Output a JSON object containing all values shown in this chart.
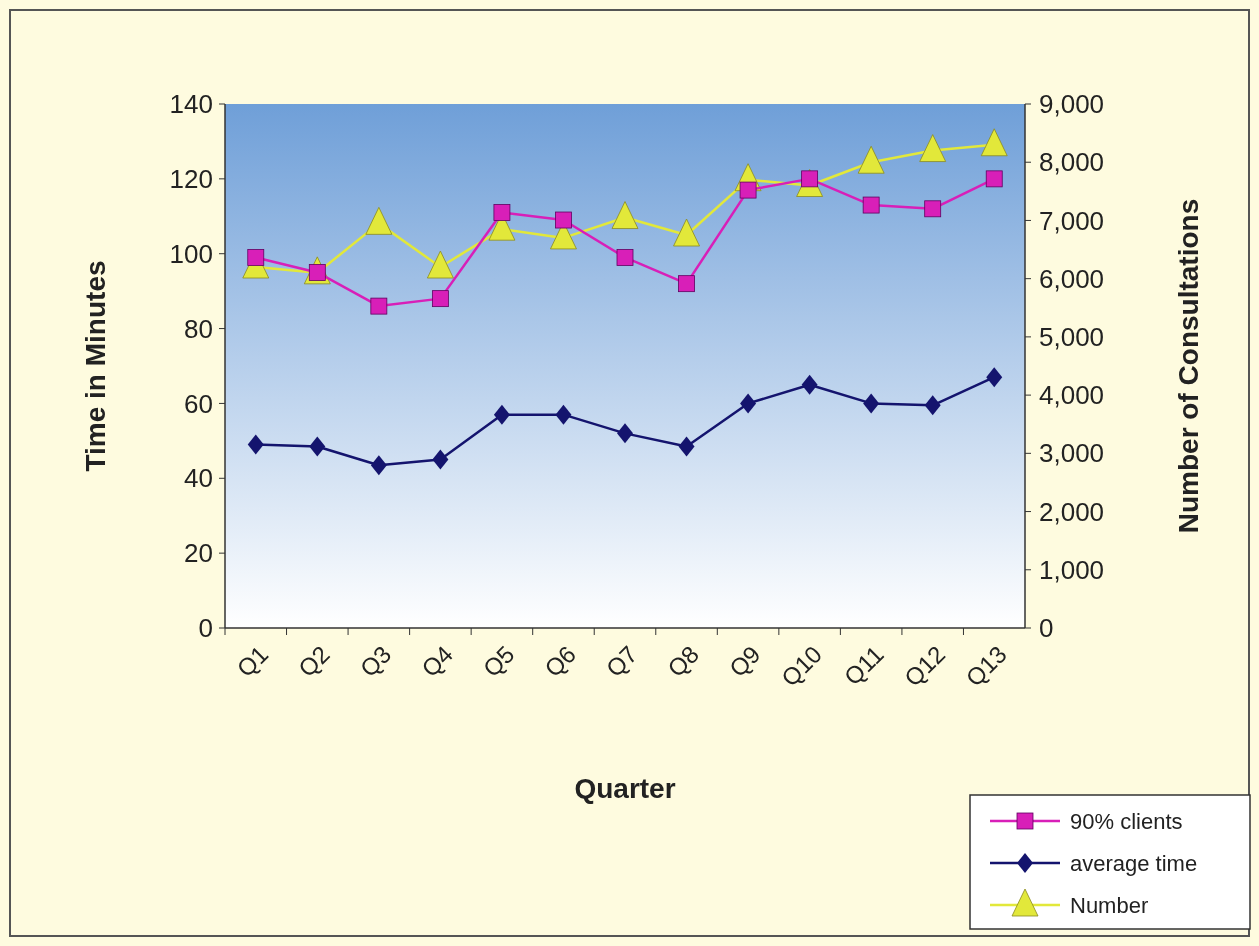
{
  "chart_data": {
    "type": "line",
    "xlabel": "Quarter",
    "ylabel": "Time in Minutes",
    "y2label": "Number of Consultations",
    "categories": [
      "Q1",
      "Q2",
      "Q3",
      "Q4",
      "Q5",
      "Q6",
      "Q7",
      "Q8",
      "Q9",
      "Q10",
      "Q11",
      "Q12",
      "Q13"
    ],
    "series": [
      {
        "name": "90% clients",
        "color": "#d81fb8",
        "marker": "square",
        "values": [
          99,
          95,
          86,
          88,
          111,
          109,
          99,
          92,
          117,
          120,
          113,
          112,
          120
        ]
      },
      {
        "name": "average time",
        "color": "#14146e",
        "marker": "diamond",
        "values": [
          49,
          48.5,
          43.5,
          45,
          57,
          57,
          52,
          48.5,
          60,
          65,
          60,
          59.5,
          67
        ]
      },
      {
        "name": "Number",
        "color": "#e2e83a",
        "marker": "triangle",
        "axis": "y2",
        "values": [
          6200,
          6100,
          6950,
          6200,
          6850,
          6700,
          7050,
          6750,
          7700,
          7600,
          8000,
          8200,
          8300
        ]
      }
    ],
    "ylim": [
      0,
      140
    ],
    "yticks": [
      0,
      20,
      40,
      60,
      80,
      100,
      120,
      140
    ],
    "y2lim": [
      0,
      9000
    ],
    "y2ticks": [
      0,
      {
        "value": 1000,
        "label": "1,000"
      },
      {
        "value": 2000,
        "label": "2,000"
      },
      {
        "value": 3000,
        "label": "3,000"
      },
      {
        "value": 4000,
        "label": "4,000"
      },
      {
        "value": 5000,
        "label": "5,000"
      },
      {
        "value": 6000,
        "label": "6,000"
      },
      {
        "value": 7000,
        "label": "7,000"
      },
      {
        "value": 8000,
        "label": "8,000"
      },
      {
        "value": 9000,
        "label": "9,000"
      }
    ],
    "grid": false,
    "legend": "bottom right",
    "line_style": "solid"
  }
}
